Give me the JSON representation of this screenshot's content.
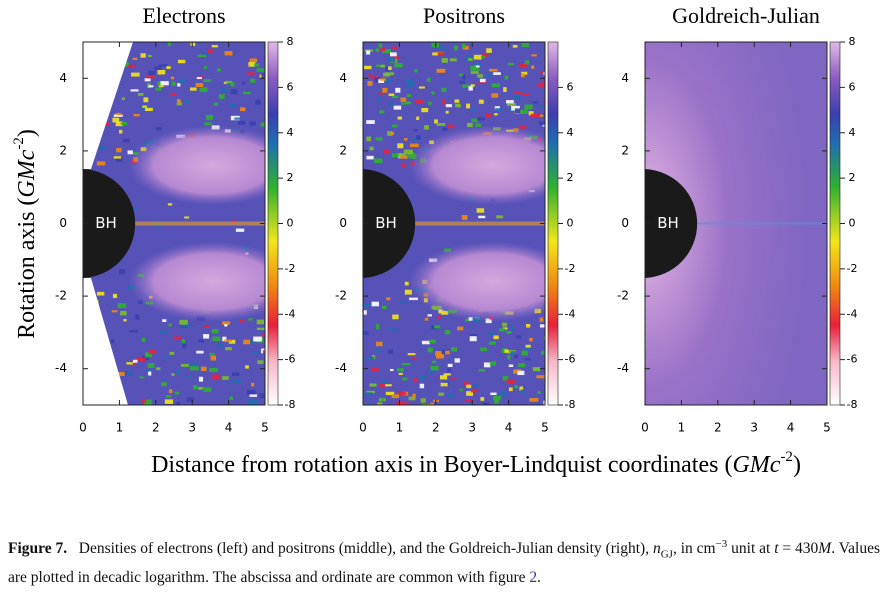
{
  "figure": {
    "panels": [
      {
        "title": "Electrons",
        "xticks": [
          0,
          1,
          2,
          3,
          4,
          5
        ],
        "yticks": [
          -4,
          -2,
          0,
          2,
          4
        ],
        "cticks": [
          -8,
          -6,
          -4,
          -2,
          0,
          2,
          4,
          6,
          8
        ],
        "bh": "BH"
      },
      {
        "title": "Positrons",
        "xticks": [
          0,
          1,
          2,
          3,
          4,
          5
        ],
        "yticks": [
          -4,
          -2,
          0,
          2,
          4
        ],
        "cticks": [
          -8,
          -6,
          -4,
          -2,
          0,
          2,
          4,
          6
        ],
        "bh": "BH"
      },
      {
        "title": "Goldreich-Julian",
        "xticks": [
          0,
          1,
          2,
          3,
          4,
          5
        ],
        "yticks": [
          -4,
          -2,
          0,
          2,
          4
        ],
        "cticks": [
          -8,
          -6,
          -4,
          -2,
          0,
          2,
          4,
          6,
          8
        ],
        "bh": "BH"
      }
    ],
    "xlim": [
      0,
      5
    ],
    "ylim": [
      -5,
      5
    ],
    "clim": [
      -8,
      8
    ],
    "ylabel": [
      "Rotation axis (",
      "GMc",
      "-2",
      ")"
    ],
    "xlabel": [
      "Distance from rotation axis in Boyer-Lindquist coordinates (",
      "GMc",
      "-2",
      ")"
    ]
  },
  "caption": {
    "label": "Figure 7.",
    "parts": [
      "Densities of electrons (left) and positrons (middle), and the Goldreich-Julian density (right), ",
      "n",
      "GJ",
      ", in cm",
      "−3",
      " unit at ",
      "t",
      " = 430",
      "M",
      ". Values are plotted in decadic logarithm. The abscissa and ordinate are common with figure ",
      "2",
      "."
    ]
  }
}
